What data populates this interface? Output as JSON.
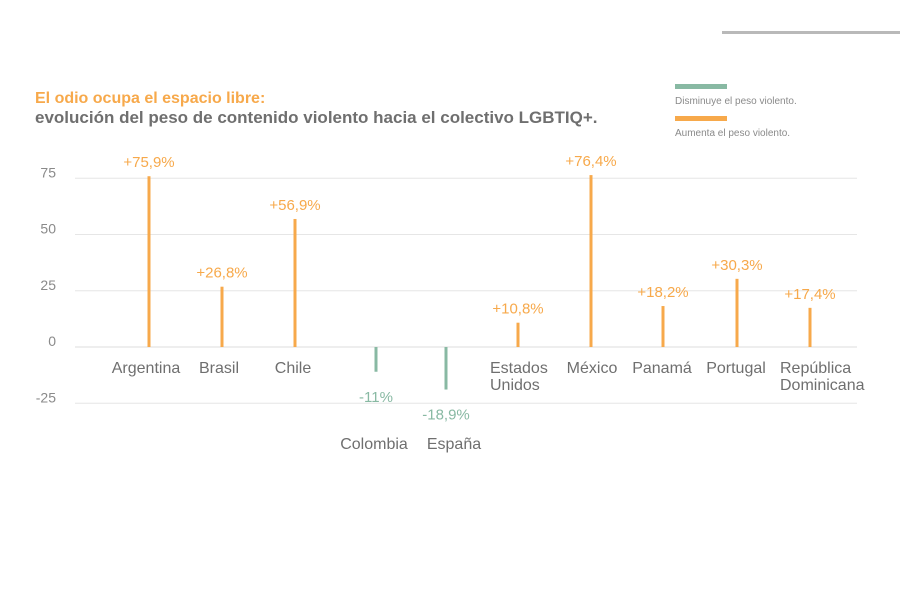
{
  "header": {
    "title": "El odio ocupa el espacio libre:",
    "subtitle": "evolución del peso de contenido violento hacia el colectivo LGBTIQ+."
  },
  "legend": [
    {
      "label": "Disminuye el peso violento.",
      "color": "#88b9a3"
    },
    {
      "label": "Aumenta el peso violento.",
      "color": "#f7a94b"
    }
  ],
  "colors": {
    "increase": "#f7a94b",
    "decrease": "#88b9a3",
    "grid": "#e6e6e6",
    "axis_text": "#8a8a8a",
    "category_text": "#6f6f6f"
  },
  "chart_data": {
    "type": "bar",
    "title": "El odio ocupa el espacio libre:",
    "subtitle": "evolución del peso de contenido violento hacia el colectivo LGBTIQ+.",
    "xlabel": "",
    "ylabel": "",
    "ylim": [
      -25,
      75
    ],
    "yticks": [
      75,
      50,
      25,
      0,
      -25
    ],
    "grid": true,
    "legend_position": "top-right",
    "categories": [
      "Argentina",
      "Brasil",
      "Chile",
      "Colombia",
      "España",
      "Estados Unidos",
      "México",
      "Panamá",
      "Portugal",
      "República Dominicana"
    ],
    "category_lines": [
      [
        "Argentina"
      ],
      [
        "Brasil"
      ],
      [
        "Chile"
      ],
      [
        "Colombia"
      ],
      [
        "España"
      ],
      [
        "Estados",
        "Unidos"
      ],
      [
        "México"
      ],
      [
        "Panamá"
      ],
      [
        "Portugal"
      ],
      [
        "República",
        "Dominicana"
      ]
    ],
    "values": [
      75.9,
      26.8,
      56.9,
      -11,
      -18.9,
      10.8,
      76.4,
      18.2,
      30.3,
      17.4
    ],
    "data_labels": [
      "+75,9%",
      "+26,8%",
      "+56,9%",
      "-11%",
      "-18,9%",
      "+10,8%",
      "+76,4%",
      "+18,2%",
      "+30,3%",
      "+17,4%"
    ]
  }
}
